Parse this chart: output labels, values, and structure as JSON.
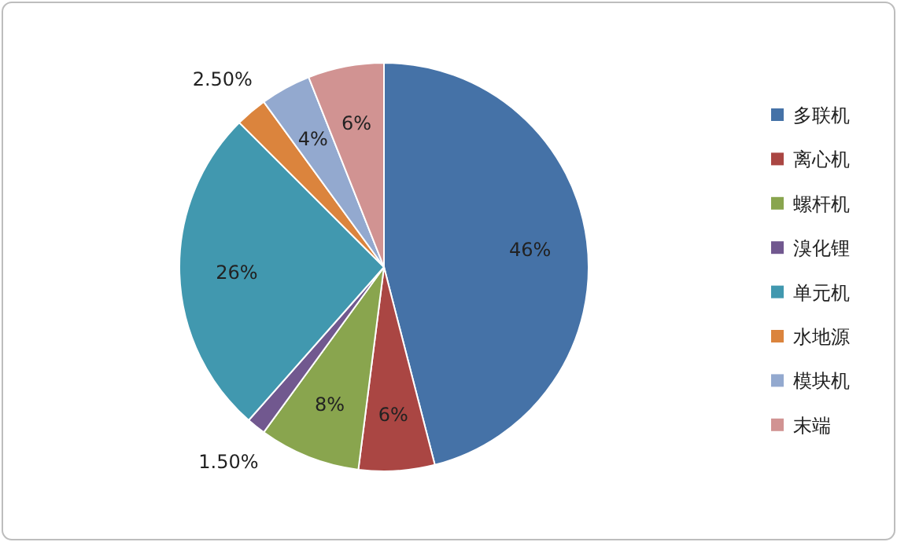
{
  "chart_data": {
    "type": "pie",
    "categories": [
      "多联机",
      "离心机",
      "螺杆机",
      "溴化锂",
      "单元机",
      "水地源",
      "模块机",
      "末端"
    ],
    "values": [
      46,
      6,
      8,
      1.5,
      26,
      2.5,
      4,
      6
    ],
    "colors": [
      "#4572a7",
      "#aa4643",
      "#89a54e",
      "#71588f",
      "#4198af",
      "#db843d",
      "#93a9cf",
      "#d19392"
    ],
    "value_labels": [
      "46%",
      "6%",
      "8%",
      "1.50%",
      "26%",
      "2.50%",
      "4%",
      "6%"
    ],
    "legend": "right"
  }
}
